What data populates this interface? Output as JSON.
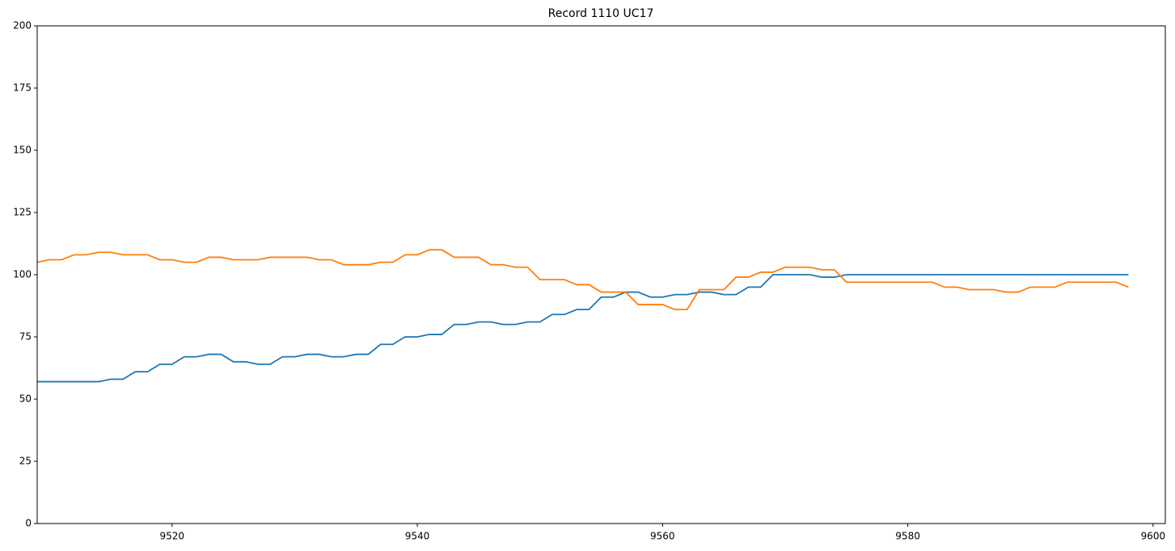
{
  "chart_data": {
    "type": "line",
    "title": "Record 1110 UC17",
    "x": [
      9509,
      9510,
      9511,
      9512,
      9513,
      9514,
      9515,
      9516,
      9517,
      9518,
      9519,
      9520,
      9521,
      9522,
      9523,
      9524,
      9525,
      9526,
      9527,
      9528,
      9529,
      9530,
      9531,
      9532,
      9533,
      9534,
      9535,
      9536,
      9537,
      9538,
      9539,
      9540,
      9541,
      9542,
      9543,
      9544,
      9545,
      9546,
      9547,
      9548,
      9549,
      9550,
      9551,
      9552,
      9553,
      9554,
      9555,
      9556,
      9557,
      9558,
      9559,
      9560,
      9561,
      9562,
      9563,
      9564,
      9565,
      9566,
      9567,
      9568,
      9569,
      9570,
      9571,
      9572,
      9573,
      9574,
      9575,
      9576,
      9577,
      9578,
      9579,
      9580,
      9581,
      9582,
      9583,
      9584,
      9585,
      9586,
      9587,
      9588,
      9589,
      9590,
      9591,
      9592,
      9593,
      9594,
      9595,
      9596,
      9597,
      9598
    ],
    "series": [
      {
        "color": "#1f77b4",
        "values": [
          57,
          57,
          57,
          57,
          57,
          57,
          58,
          58,
          61,
          61,
          64,
          64,
          67,
          67,
          68,
          68,
          65,
          65,
          64,
          64,
          67,
          67,
          68,
          68,
          67,
          67,
          68,
          68,
          72,
          72,
          75,
          75,
          76,
          76,
          80,
          80,
          81,
          81,
          80,
          80,
          81,
          81,
          84,
          84,
          86,
          86,
          91,
          91,
          93,
          93,
          91,
          91,
          92,
          92,
          93,
          93,
          92,
          92,
          95,
          95,
          100,
          100,
          100,
          100,
          99,
          99,
          100,
          100,
          100,
          100,
          100,
          100,
          100,
          100,
          100,
          100,
          100,
          100,
          100,
          100,
          100,
          100,
          100,
          100,
          100,
          100,
          100,
          100,
          100,
          100
        ]
      },
      {
        "color": "#ff7f0e",
        "values": [
          105,
          106,
          106,
          108,
          108,
          109,
          109,
          108,
          108,
          108,
          106,
          106,
          105,
          105,
          107,
          107,
          106,
          106,
          106,
          107,
          107,
          107,
          107,
          106,
          106,
          104,
          104,
          104,
          105,
          105,
          108,
          108,
          110,
          110,
          107,
          107,
          107,
          104,
          104,
          103,
          103,
          98,
          98,
          98,
          96,
          96,
          93,
          93,
          93,
          88,
          88,
          88,
          86,
          86,
          94,
          94,
          94,
          99,
          99,
          101,
          101,
          103,
          103,
          103,
          102,
          102,
          97,
          97,
          97,
          97,
          97,
          97,
          97,
          97,
          95,
          95,
          94,
          94,
          94,
          93,
          93,
          95,
          95,
          95,
          97,
          97,
          97,
          97,
          97,
          95
        ]
      }
    ],
    "xlim": [
      9509,
      9601
    ],
    "xticks": [
      9520,
      9540,
      9560,
      9580,
      9600
    ],
    "ylim": [
      0,
      200
    ],
    "yticks": [
      0,
      25,
      50,
      75,
      100,
      125,
      150,
      175,
      200
    ]
  }
}
